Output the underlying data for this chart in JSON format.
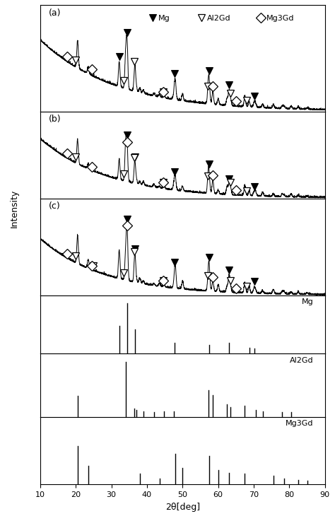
{
  "xlim": [
    10,
    90
  ],
  "xlabel": "2θ[deg]",
  "ylabel": "Intensity",
  "bg_color": "#ffffff",
  "mg_peaks": [
    32.2,
    34.4,
    36.6,
    47.8,
    57.4,
    63.1,
    68.7,
    70.1
  ],
  "mg_heights": [
    0.55,
    1.0,
    0.48,
    0.22,
    0.18,
    0.22,
    0.12,
    0.1
  ],
  "al2gd_peaks": [
    20.5,
    34.0,
    36.5,
    37.0,
    39.0,
    42.0,
    44.8,
    47.5,
    57.2,
    58.5,
    62.5,
    63.5,
    67.5,
    70.5,
    72.5,
    78.0,
    80.5
  ],
  "al2gd_heights": [
    0.38,
    1.0,
    0.15,
    0.12,
    0.1,
    0.08,
    0.1,
    0.1,
    0.48,
    0.4,
    0.22,
    0.18,
    0.2,
    0.12,
    0.1,
    0.08,
    0.08
  ],
  "mg3gd_peaks": [
    20.5,
    23.5,
    38.0,
    43.5,
    48.0,
    50.0,
    57.5,
    60.0,
    63.0,
    67.5,
    75.5,
    78.5,
    82.5,
    85.0
  ],
  "mg3gd_heights": [
    0.65,
    0.32,
    0.18,
    0.1,
    0.52,
    0.28,
    0.48,
    0.25,
    0.2,
    0.18,
    0.15,
    0.1,
    0.08,
    0.06
  ],
  "panel_a_mg_markers": [
    32.2,
    34.4,
    47.8,
    57.4,
    63.1,
    70.1
  ],
  "panel_a_al2gd_markers": [
    20.0,
    33.5,
    36.5,
    44.5,
    57.0,
    63.5,
    68.0
  ],
  "panel_a_mg3gd_markers": [
    17.5,
    24.5,
    44.5,
    58.5,
    65.0
  ],
  "panel_b_mg_markers": [
    34.4,
    36.6,
    47.8,
    57.4,
    63.1,
    70.1
  ],
  "panel_b_al2gd_markers": [
    20.0,
    33.5,
    36.5,
    44.5,
    57.0,
    63.5,
    68.0
  ],
  "panel_b_mg3gd_markers": [
    17.5,
    24.5,
    34.5,
    44.5,
    58.5,
    65.0
  ],
  "panel_c_mg_markers": [
    34.4,
    36.6,
    47.8,
    57.4,
    63.1,
    70.1
  ],
  "panel_c_al2gd_markers": [
    20.0,
    25.0,
    33.5,
    36.5,
    44.5,
    57.0,
    63.5,
    68.0
  ],
  "panel_c_mg3gd_markers": [
    17.5,
    24.5,
    34.5,
    44.5,
    58.5,
    65.0
  ]
}
